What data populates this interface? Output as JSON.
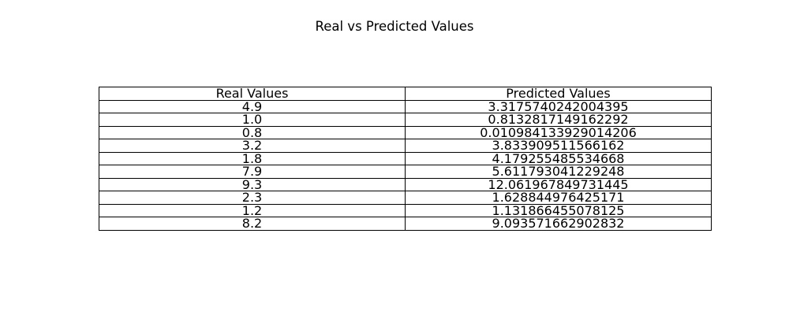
{
  "chart_data": {
    "type": "table",
    "title": "Real vs Predicted Values",
    "columns": [
      "Real Values",
      "Predicted Values"
    ],
    "rows": [
      [
        "4.9",
        "3.3175740242004395"
      ],
      [
        "1.0",
        "0.8132817149162292"
      ],
      [
        "0.8",
        "0.010984133929014206"
      ],
      [
        "3.2",
        "3.833909511566162"
      ],
      [
        "1.8",
        "4.179255485534668"
      ],
      [
        "7.9",
        "5.611793041229248"
      ],
      [
        "9.3",
        "12.061967849731445"
      ],
      [
        "2.3",
        "1.628844976425171"
      ],
      [
        "1.2",
        "1.131866455078125"
      ],
      [
        "8.2",
        "9.093571662902832"
      ]
    ]
  }
}
